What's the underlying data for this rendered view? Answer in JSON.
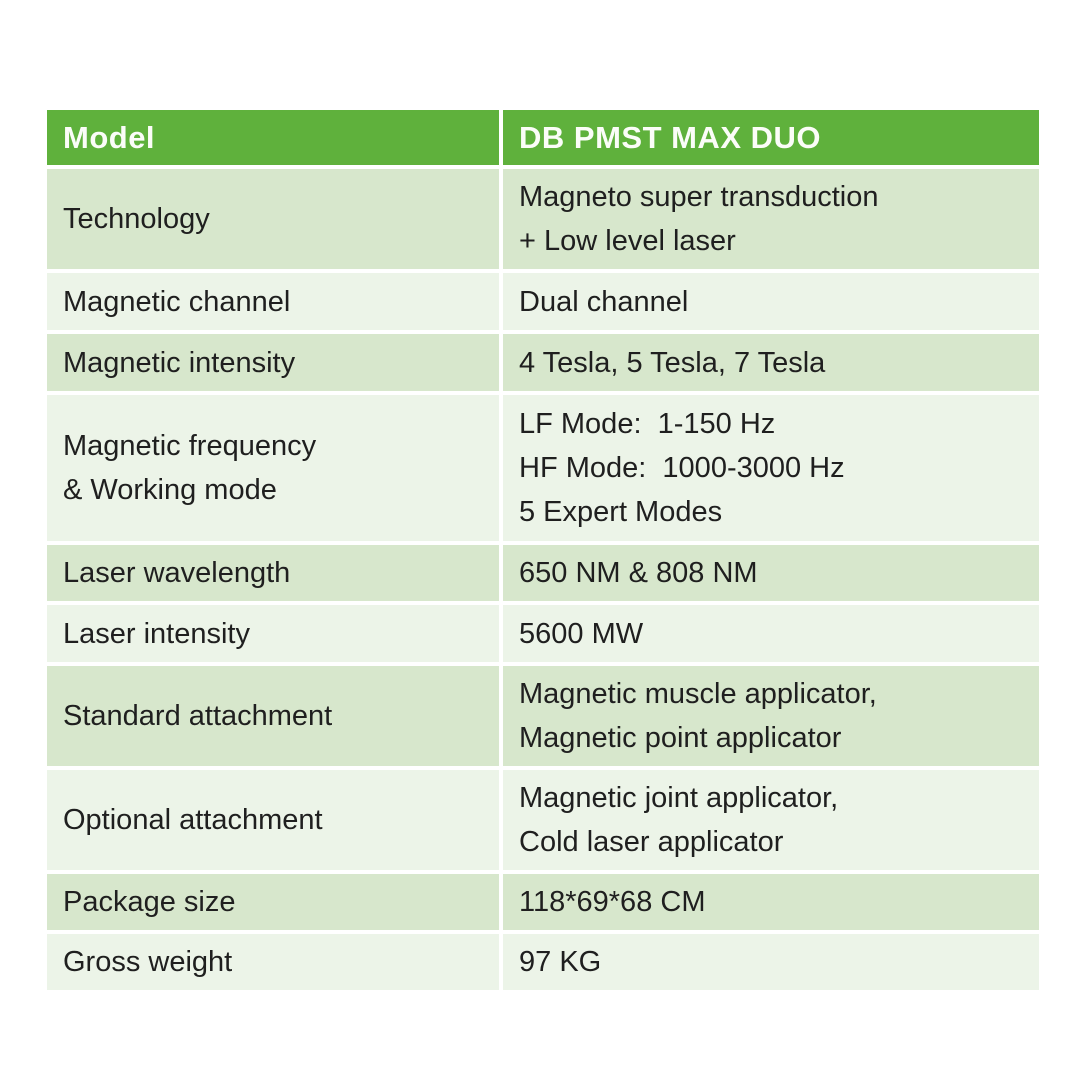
{
  "table": {
    "header": {
      "col1": "Model",
      "col2": "DB PMST MAX DUO"
    },
    "rows": [
      {
        "label": "Technology",
        "value": "Magneto super transduction\n+ Low level laser"
      },
      {
        "label": "Magnetic channel",
        "value": "Dual channel"
      },
      {
        "label": "Magnetic intensity",
        "value": "4 Tesla, 5 Tesla, 7 Tesla"
      },
      {
        "label": "Magnetic frequency\n& Working mode",
        "value": "LF Mode:  1-150 Hz\nHF Mode:  1000-3000 Hz\n5 Expert Modes"
      },
      {
        "label": "Laser wavelength",
        "value": "650 NM & 808 NM"
      },
      {
        "label": "Laser intensity",
        "value": "5600 MW"
      },
      {
        "label": "Standard attachment",
        "value": "Magnetic muscle applicator,\nMagnetic point applicator"
      },
      {
        "label": "Optional attachment",
        "value": "Magnetic joint applicator,\nCold laser applicator"
      },
      {
        "label": "Package size",
        "value": "118*69*68 CM"
      },
      {
        "label": "Gross weight",
        "value": "97 KG"
      }
    ],
    "colors": {
      "page_bg": "#ffffff",
      "header_bg": "#5fb13c",
      "header_text": "#fbfdf8",
      "row_dark": "#d7e7cc",
      "row_light": "#ecf4e8",
      "body_text": "#1f1f1f",
      "divider": "#ffffff"
    }
  }
}
